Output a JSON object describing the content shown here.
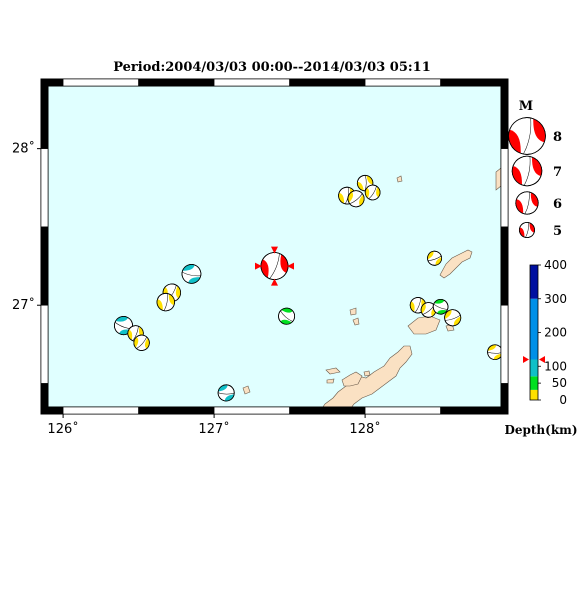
{
  "title": "Period:2004/03/03 00:00--2014/03/03 05:11",
  "map": {
    "lon_range": [
      125.9,
      128.9
    ],
    "lat_range": [
      26.35,
      28.4
    ],
    "lon_ticks": [
      {
        "value": 126,
        "label": "126˚"
      },
      {
        "value": 127,
        "label": "127˚"
      },
      {
        "value": 128,
        "label": "128˚"
      }
    ],
    "lat_ticks": [
      {
        "value": 28,
        "label": "28˚"
      },
      {
        "value": 27,
        "label": "27˚"
      }
    ],
    "ocean_color": "#e0ffff",
    "land_color": "#fae1c3",
    "events": [
      {
        "lon": 127.4,
        "lat": 27.25,
        "mag": 6.8,
        "color": "#ff0000",
        "rot": 30,
        "main": true
      },
      {
        "lon": 126.85,
        "lat": 27.2,
        "mag": 5.6,
        "color": "#10c0c8",
        "rot": 110
      },
      {
        "lon": 126.72,
        "lat": 27.08,
        "mag": 5.4,
        "color": "#ffe000",
        "rot": 40
      },
      {
        "lon": 126.68,
        "lat": 27.02,
        "mag": 5.4,
        "color": "#ffe000",
        "rot": 20
      },
      {
        "lon": 126.4,
        "lat": 26.87,
        "mag": 5.5,
        "color": "#10c0c8",
        "rot": 120
      },
      {
        "lon": 126.48,
        "lat": 26.82,
        "mag": 5.1,
        "color": "#ffe000",
        "rot": 30
      },
      {
        "lon": 126.52,
        "lat": 26.76,
        "mag": 5.1,
        "color": "#ffe000",
        "rot": 50
      },
      {
        "lon": 127.48,
        "lat": 26.93,
        "mag": 5.2,
        "color": "#00e020",
        "rot": 140
      },
      {
        "lon": 127.08,
        "lat": 26.44,
        "mag": 5.2,
        "color": "#10c0c8",
        "rot": 100
      },
      {
        "lon": 127.88,
        "lat": 27.7,
        "mag": 5.3,
        "color": "#ffe000",
        "rot": 20
      },
      {
        "lon": 127.94,
        "lat": 27.68,
        "mag": 5.2,
        "color": "#ffe000",
        "rot": 60
      },
      {
        "lon": 128.0,
        "lat": 27.78,
        "mag": 5.1,
        "color": "#ffe000",
        "rot": 10
      },
      {
        "lon": 128.05,
        "lat": 27.72,
        "mag": 5.0,
        "color": "#ffe000",
        "rot": 40
      },
      {
        "lon": 128.46,
        "lat": 27.3,
        "mag": 4.9,
        "color": "#ffe000",
        "rot": 80
      },
      {
        "lon": 128.35,
        "lat": 27.0,
        "mag": 5.1,
        "color": "#ffe000",
        "rot": 30
      },
      {
        "lon": 128.42,
        "lat": 26.97,
        "mag": 5.0,
        "color": "#ffe000",
        "rot": 60
      },
      {
        "lon": 128.5,
        "lat": 26.99,
        "mag": 5.0,
        "color": "#00e020",
        "rot": 120
      },
      {
        "lon": 128.58,
        "lat": 26.92,
        "mag": 5.2,
        "color": "#ffe000",
        "rot": 80
      },
      {
        "lon": 128.86,
        "lat": 26.7,
        "mag": 5.0,
        "color": "#ffe000",
        "rot": 100
      }
    ],
    "main_event": {
      "lon": 127.4,
      "lat": 27.25
    }
  },
  "magnitude_legend": {
    "title": "M",
    "color": "#ff0000",
    "items": [
      {
        "mag": 8,
        "label": "8"
      },
      {
        "mag": 7,
        "label": "7"
      },
      {
        "mag": 6,
        "label": "6"
      },
      {
        "mag": 5,
        "label": "5"
      }
    ]
  },
  "depth_legend": {
    "title": "Depth(km)",
    "range": [
      0,
      400
    ],
    "ticks": [
      {
        "value": 400,
        "label": "400"
      },
      {
        "value": 300,
        "label": "300"
      },
      {
        "value": 200,
        "label": "200"
      },
      {
        "value": 100,
        "label": "100"
      },
      {
        "value": 50,
        "label": "50"
      },
      {
        "value": 0,
        "label": "0"
      }
    ],
    "bands": [
      {
        "from": 0,
        "to": 30,
        "color": "#ffe000"
      },
      {
        "from": 30,
        "to": 70,
        "color": "#00e020"
      },
      {
        "from": 70,
        "to": 120,
        "color": "#10c0c8"
      },
      {
        "from": 120,
        "to": 300,
        "color": "#0090e8"
      },
      {
        "from": 300,
        "to": 400,
        "color": "#0010a0"
      }
    ],
    "marker_depth": 120,
    "marker_color": "#ff0000"
  }
}
